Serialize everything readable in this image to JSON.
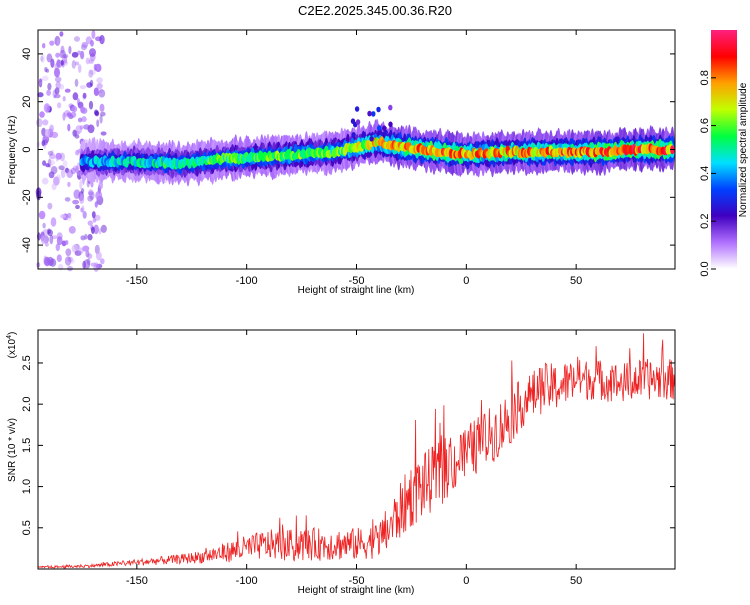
{
  "title": "C2E2.2025.345.00.36.R20",
  "chart_data": [
    {
      "type": "heatmap",
      "panel": "spectrogram",
      "xlabel": "Height of straight line (km)",
      "ylabel": "Frequency (Hz)",
      "xlim": [
        -195,
        95
      ],
      "ylim": [
        -50,
        50
      ],
      "x_ticks": [
        -150,
        -100,
        -50,
        0,
        50
      ],
      "x_tick_labels": [
        "-150",
        "-100",
        "-50",
        "0",
        "50"
      ],
      "y_ticks": [
        -40,
        -20,
        0,
        20,
        40
      ],
      "y_tick_labels": [
        "-40",
        "-20",
        "0",
        "20",
        "40"
      ],
      "grid": false,
      "colorbar": {
        "label": "Normalized spectral amplitude",
        "range": [
          0,
          1
        ],
        "ticks": [
          0.0,
          0.2,
          0.4,
          0.6,
          0.8
        ],
        "tick_labels": [
          "0.0",
          "0.2",
          "0.4",
          "0.6",
          "0.8"
        ],
        "colors": [
          "#ffffff",
          "#b070ff",
          "#4000c0",
          "#0040ff",
          "#00e0ff",
          "#00ff40",
          "#c0ff00",
          "#ffa000",
          "#ff0000",
          "#ff2080"
        ]
      },
      "ridge": {
        "description_points_x": [
          -195,
          -170,
          -150,
          -130,
          -110,
          -90,
          -75,
          -60,
          -50,
          -40,
          -30,
          -20,
          -10,
          0,
          20,
          40,
          60,
          80,
          95
        ],
        "frequency_hz": [
          -5,
          -5,
          -5,
          -6,
          -4,
          -3,
          -2,
          -1,
          1,
          3,
          1,
          0,
          -1,
          -2,
          -1,
          -1,
          -1,
          0,
          0
        ],
        "peak_amplitude": [
          0.3,
          0.45,
          0.5,
          0.55,
          0.6,
          0.6,
          0.65,
          0.6,
          0.7,
          0.75,
          0.85,
          0.9,
          0.9,
          0.85,
          0.8,
          0.85,
          0.9,
          0.9,
          0.9
        ]
      }
    },
    {
      "type": "line",
      "panel": "snr",
      "xlabel": "Height of straight line (km)",
      "ylabel": "SNR (10 * v/v)",
      "y_multiplier_label": "(x10",
      "y_multiplier_exponent": "4",
      "y_multiplier_close": ")",
      "xlim": [
        -195,
        95
      ],
      "ylim": [
        0,
        2.9
      ],
      "x_ticks": [
        -150,
        -100,
        -50,
        0,
        50
      ],
      "x_tick_labels": [
        "-150",
        "-100",
        "-50",
        "0",
        "50"
      ],
      "y_ticks": [
        0.5,
        1.0,
        1.5,
        2.0,
        2.5
      ],
      "y_tick_labels": [
        "0.5",
        "1.0",
        "1.5",
        "2.0",
        "2.5"
      ],
      "grid": false,
      "series": [
        {
          "color": "#ee2222",
          "x": [
            -195,
            -180,
            -170,
            -160,
            -150,
            -140,
            -130,
            -120,
            -110,
            -100,
            -90,
            -80,
            -70,
            -60,
            -50,
            -40,
            -35,
            -30,
            -25,
            -20,
            -15,
            -10,
            -5,
            0,
            5,
            10,
            15,
            20,
            25,
            30,
            35,
            40,
            50,
            60,
            70,
            80,
            90,
            95
          ],
          "y": [
            0.02,
            0.03,
            0.04,
            0.06,
            0.08,
            0.1,
            0.12,
            0.15,
            0.2,
            0.25,
            0.3,
            0.28,
            0.3,
            0.3,
            0.3,
            0.35,
            0.5,
            0.7,
            0.9,
            1.0,
            1.1,
            1.2,
            1.3,
            1.4,
            1.5,
            1.6,
            1.7,
            1.85,
            2.0,
            2.1,
            2.2,
            2.2,
            2.3,
            2.3,
            2.25,
            2.3,
            2.3,
            2.3
          ],
          "noise": [
            0.01,
            0.02,
            0.02,
            0.03,
            0.04,
            0.05,
            0.06,
            0.08,
            0.12,
            0.16,
            0.18,
            0.2,
            0.2,
            0.2,
            0.2,
            0.22,
            0.3,
            0.35,
            0.4,
            0.4,
            0.4,
            0.4,
            0.35,
            0.35,
            0.35,
            0.35,
            0.35,
            0.35,
            0.3,
            0.3,
            0.3,
            0.3,
            0.25,
            0.25,
            0.25,
            0.25,
            0.25,
            0.25
          ]
        }
      ]
    }
  ]
}
